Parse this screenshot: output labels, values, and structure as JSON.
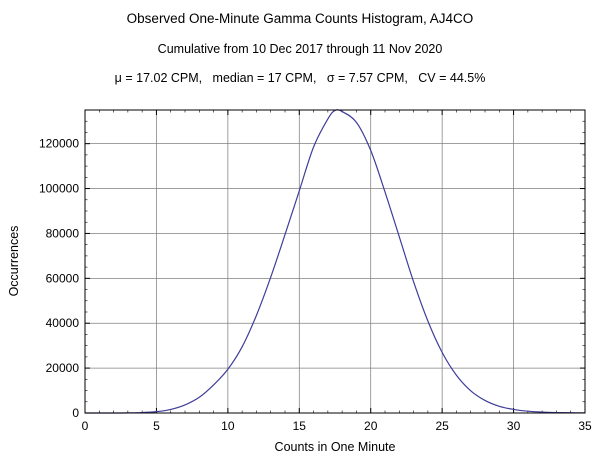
{
  "chart_data": {
    "type": "line",
    "title": "Observed One-Minute Gamma Counts Histogram, AJ4CO",
    "subtitle": "Cumulative from 10 Dec 2017 through 11 Nov 2020",
    "stats_line": "μ = 17.02 CPM,   median = 17 CPM,   σ = 7.57 CPM,   CV = 44.5%",
    "xlabel": "Counts in One Minute",
    "ylabel": "Occurrences",
    "xlim": [
      0,
      35
    ],
    "ylim": [
      0,
      135000
    ],
    "x_ticks": [
      0,
      5,
      10,
      15,
      20,
      25,
      30,
      35
    ],
    "y_ticks": [
      0,
      20000,
      40000,
      60000,
      80000,
      100000,
      120000
    ],
    "x_minor_step": 1,
    "y_minor_step": 5000,
    "grid": true,
    "grid_color": "#808080",
    "frame_color": "#000000",
    "line_color": "#3F3D99",
    "series": [
      {
        "name": "occurrences",
        "x": [
          0,
          1,
          2,
          3,
          4,
          5,
          6,
          7,
          8,
          9,
          10,
          11,
          12,
          13,
          14,
          15,
          16,
          17,
          17.5,
          18,
          19,
          20,
          21,
          22,
          23,
          24,
          25,
          26,
          27,
          28,
          29,
          30,
          31,
          32,
          33,
          34,
          35
        ],
        "y": [
          0,
          0,
          0,
          50,
          200,
          600,
          1600,
          3600,
          7000,
          12500,
          19500,
          29500,
          43500,
          60500,
          79500,
          99000,
          118500,
          131000,
          134800,
          134300,
          129500,
          117000,
          98500,
          78500,
          58500,
          41000,
          27000,
          16800,
          9900,
          5600,
          3000,
          1600,
          800,
          400,
          200,
          100,
          60
        ]
      }
    ]
  }
}
